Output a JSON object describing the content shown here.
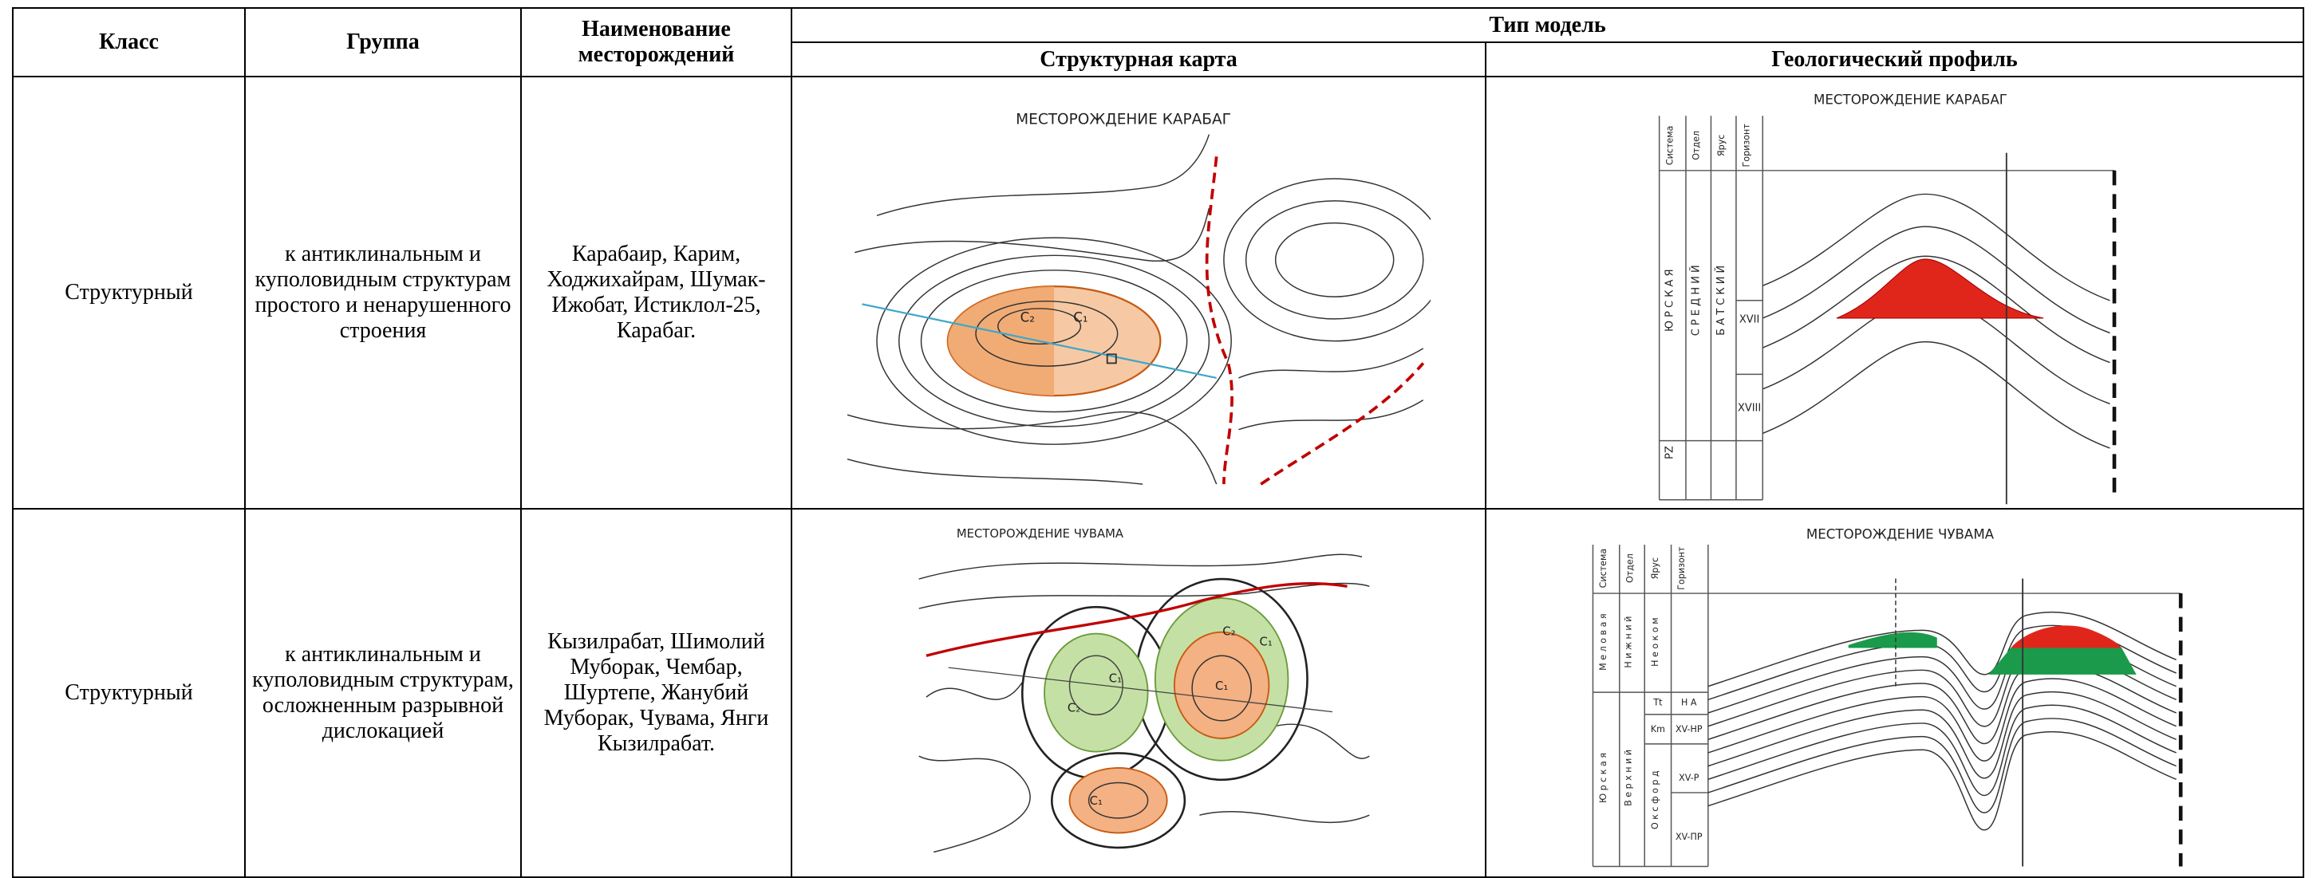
{
  "table": {
    "header": {
      "class": "Класс",
      "group": "Группа",
      "name": "Наименование месторождений",
      "type_model": "Тип модель",
      "structural_map": "Структурная карта",
      "geological_profile": "Геологический профиль"
    },
    "rows": [
      {
        "class": "Структурный",
        "group": "к антиклинальным и куполовидным структурам простого и ненарушенного строения",
        "fields": "Карабаир, Карим, Ходжихайрам, Шумак-Ижобат, Истиклол-25, Карабаг.",
        "structural_map": {
          "title": "МЕСТОРОЖДЕНИЕ КАРАБАГ",
          "labels": [
            "C₂",
            "C₁"
          ]
        },
        "geological_profile": {
          "title": "МЕСТОРОЖДЕНИЕ КАРАБАГ",
          "columns": [
            "Система",
            "Отдел",
            "Ярус",
            "Горизонт"
          ],
          "stratigraphy": [
            "Ю Р С К А Я",
            "С Р Е Д Н И Й",
            "Б А Т С К И Й"
          ],
          "horizons": [
            "XVII",
            "XVIII",
            "PZ"
          ]
        }
      },
      {
        "class": "Структурный",
        "group": "к антиклинальным и куполовидным структурам, осложненным разрывной дислокацией",
        "fields": "Кызилрабат, Шимолий Муборак, Чембар, Шуртепе, Жанубий Муборак, Чувама, Янги Кызилрабат.",
        "structural_map": {
          "title": "МЕСТОРОЖДЕНИЕ ЧУВАМА",
          "labels": [
            "C₁",
            "C₂",
            "C₂",
            "C₁",
            "C₁",
            "C₁"
          ]
        },
        "geological_profile": {
          "title": "МЕСТОРОЖДЕНИЕ ЧУВАМА",
          "columns": [
            "Система",
            "Отдел",
            "Ярус",
            "Горизонт"
          ],
          "stratigraphy": [
            "Ю р с к а я",
            "М е л о в а я",
            "В е р х н и й",
            "Н и ж н и й",
            "О к с ф о р д",
            "Н е о к о м"
          ],
          "horizons": [
            "Tt",
            "Km",
            "Н А",
            "XV-HP",
            "XV-P",
            "XV-ПР"
          ]
        }
      }
    ]
  }
}
